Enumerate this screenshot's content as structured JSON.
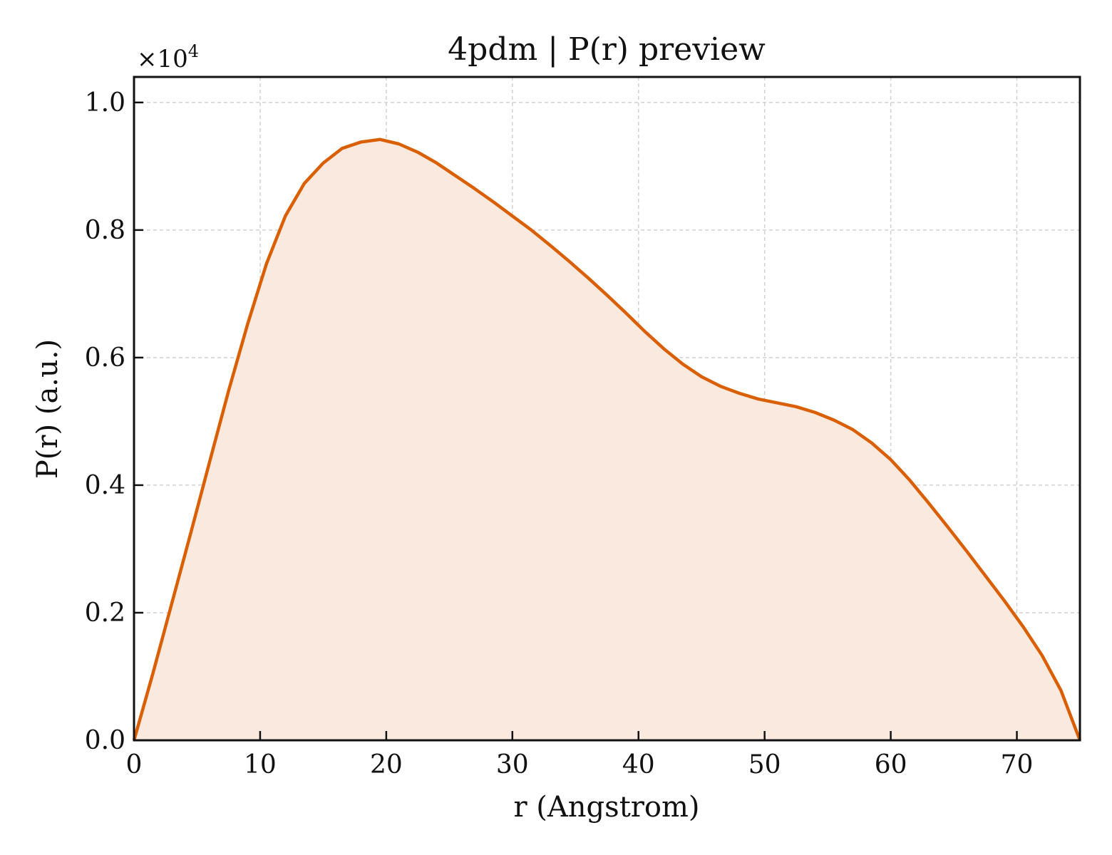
{
  "chart_data": {
    "type": "area",
    "title": "4pdm | P(r) preview",
    "xlabel": "r (Angstrom)",
    "ylabel": "P(r) (a.u.)",
    "y_multiplier_base": "×10",
    "y_multiplier_exp": "4",
    "xlim": [
      0,
      75
    ],
    "ylim": [
      0,
      1.04
    ],
    "xticks": [
      0,
      10,
      20,
      30,
      40,
      50,
      60,
      70
    ],
    "xtick_labels": [
      "0",
      "10",
      "20",
      "30",
      "40",
      "50",
      "60",
      "70"
    ],
    "yticks": [
      0,
      0.2,
      0.4,
      0.6,
      0.8,
      1.0
    ],
    "ytick_labels": [
      "0.0",
      "0.2",
      "0.4",
      "0.6",
      "0.8",
      "1.0"
    ],
    "grid": true,
    "line_color": "#d95f02",
    "fill_color": "#fae9de",
    "series": [
      {
        "x": [
          0,
          1.5,
          3,
          4.5,
          6,
          7.5,
          9,
          10.5,
          12,
          13.5,
          15,
          16.5,
          18,
          19.5,
          21,
          22.5,
          24,
          25.5,
          27,
          28.5,
          30,
          31.5,
          33,
          34.5,
          36,
          37.5,
          39,
          40.5,
          42,
          43.5,
          45,
          46.5,
          48,
          49.5,
          51,
          52.5,
          54,
          55.5,
          57,
          58.5,
          60,
          61.5,
          63,
          64.5,
          66,
          67.5,
          69,
          70.5,
          72,
          73.5,
          75
        ],
        "y": [
          0.0,
          0.105,
          0.215,
          0.325,
          0.437,
          0.548,
          0.652,
          0.747,
          0.822,
          0.873,
          0.905,
          0.928,
          0.938,
          0.942,
          0.935,
          0.922,
          0.905,
          0.885,
          0.865,
          0.844,
          0.822,
          0.8,
          0.776,
          0.751,
          0.725,
          0.698,
          0.67,
          0.641,
          0.614,
          0.59,
          0.57,
          0.555,
          0.544,
          0.535,
          0.529,
          0.523,
          0.514,
          0.502,
          0.487,
          0.466,
          0.44,
          0.408,
          0.372,
          0.335,
          0.297,
          0.258,
          0.219,
          0.178,
          0.133,
          0.078,
          0.0
        ]
      }
    ]
  }
}
